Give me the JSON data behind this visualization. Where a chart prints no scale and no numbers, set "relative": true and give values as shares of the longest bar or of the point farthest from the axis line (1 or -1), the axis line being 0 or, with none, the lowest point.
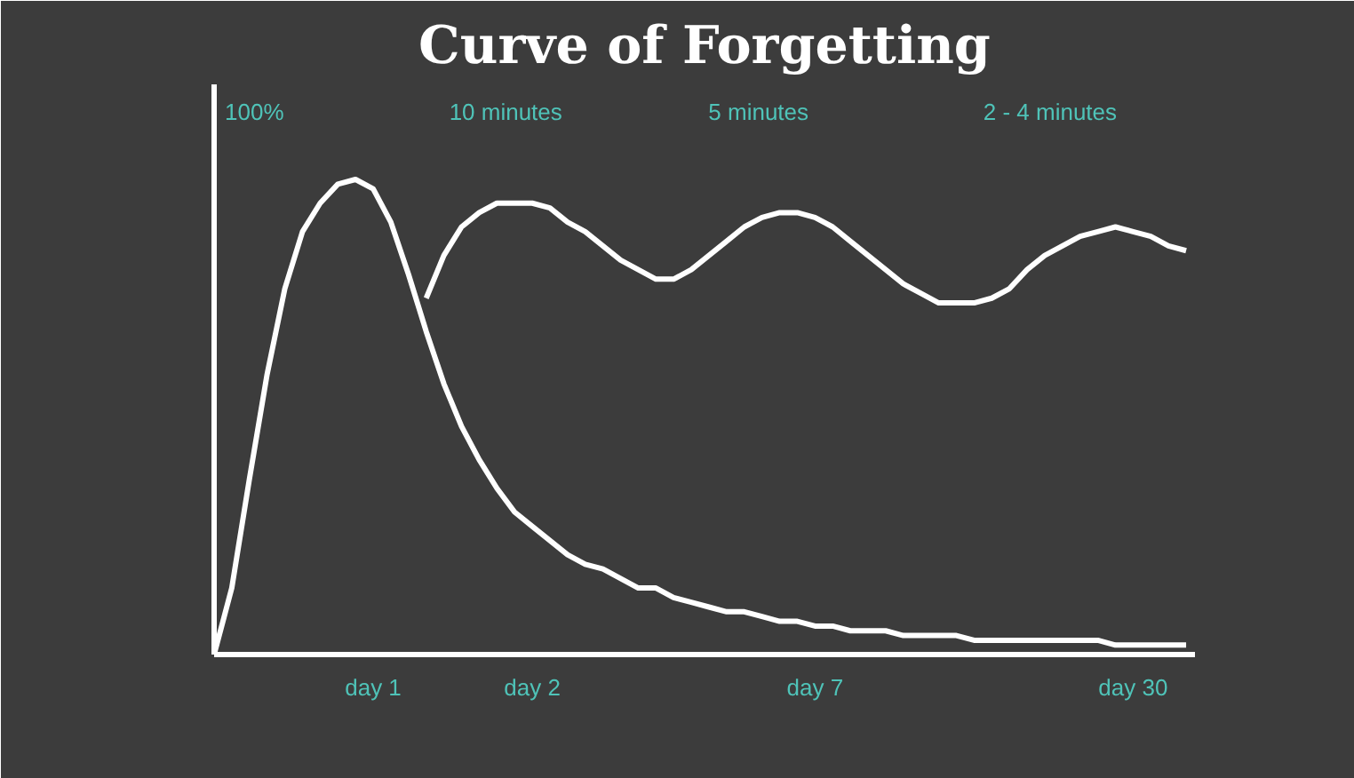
{
  "chart_data": {
    "type": "line",
    "title": "Curve of Forgetting",
    "relative": true,
    "grid": false,
    "marker": "none",
    "line_style": "solid",
    "categories": [
      null,
      null,
      null,
      null,
      null,
      null,
      null,
      null,
      null,
      "day 1",
      null,
      null,
      null,
      null,
      null,
      null,
      null,
      null,
      "day 2",
      null,
      null,
      null,
      null,
      null,
      null,
      null,
      null,
      null,
      null,
      null,
      null,
      null,
      null,
      null,
      "day 7",
      null,
      null,
      null,
      null,
      null,
      null,
      null,
      null,
      null,
      null,
      null,
      null,
      null,
      null,
      null,
      null,
      null,
      "day 30",
      null,
      null,
      null
    ],
    "series": [
      {
        "color": "#ffffff",
        "values": [
          0,
          0.14,
          0.37,
          0.59,
          0.77,
          0.89,
          0.95,
          0.99,
          1,
          0.98,
          0.91,
          0.8,
          0.68,
          0.57,
          0.48,
          0.41,
          0.35,
          0.3,
          0.27,
          0.24,
          0.21,
          0.19,
          0.18,
          0.16,
          0.14,
          0.14,
          0.12,
          0.11,
          0.1,
          0.09,
          0.09,
          0.08,
          0.07,
          0.07,
          0.06,
          0.06,
          0.05,
          0.05,
          0.05,
          0.04,
          0.04,
          0.04,
          0.04,
          0.03,
          0.03,
          0.03,
          0.03,
          0.03,
          0.03,
          0.03,
          0.03,
          0.02,
          0.02,
          0.02,
          0.02,
          0.02
        ]
      },
      {
        "color": "#ffffff",
        "values": [
          null,
          null,
          null,
          null,
          null,
          null,
          null,
          null,
          null,
          null,
          null,
          null,
          0.75,
          0.84,
          0.9,
          0.93,
          0.95,
          0.95,
          0.95,
          0.94,
          0.91,
          0.89,
          0.86,
          0.83,
          0.81,
          0.79,
          0.79,
          0.81,
          0.84,
          0.87,
          0.9,
          0.92,
          0.93,
          0.93,
          0.92,
          0.9,
          0.87,
          0.84,
          0.81,
          0.78,
          0.76,
          0.74,
          0.74,
          0.74,
          0.75,
          0.77,
          0.81,
          0.84,
          0.86,
          0.88,
          0.89,
          0.9,
          0.89,
          0.88,
          0.86,
          0.85
        ]
      }
    ],
    "annotations": [
      "100%",
      "10 minutes",
      "5 minutes",
      "2 - 4 minutes"
    ]
  }
}
